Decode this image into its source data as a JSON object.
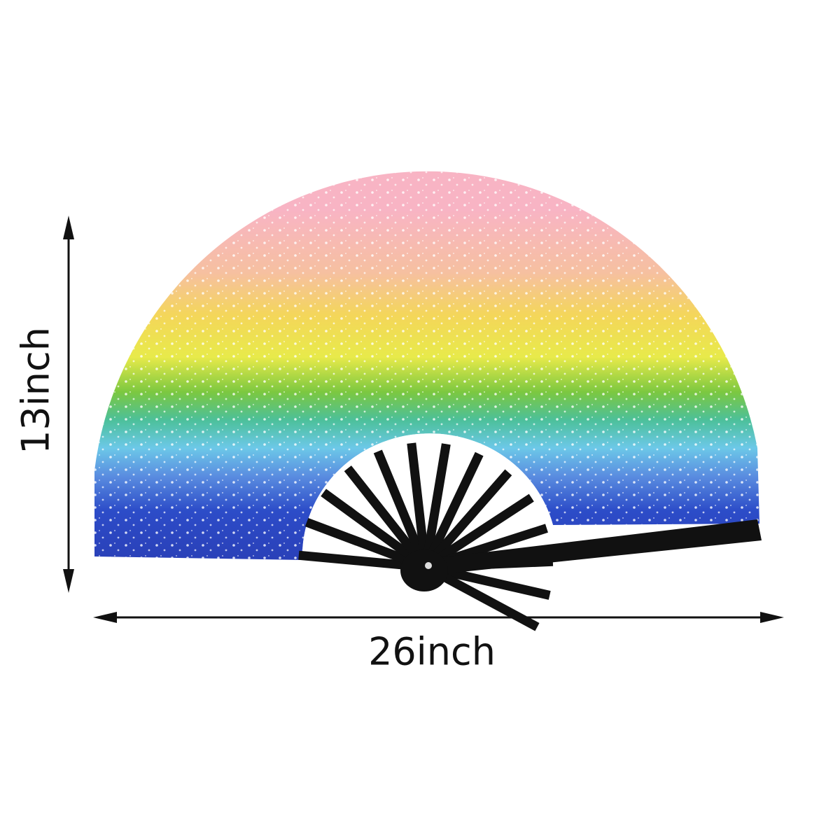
{
  "height_label": "13inch",
  "width_label": "26inch"
}
